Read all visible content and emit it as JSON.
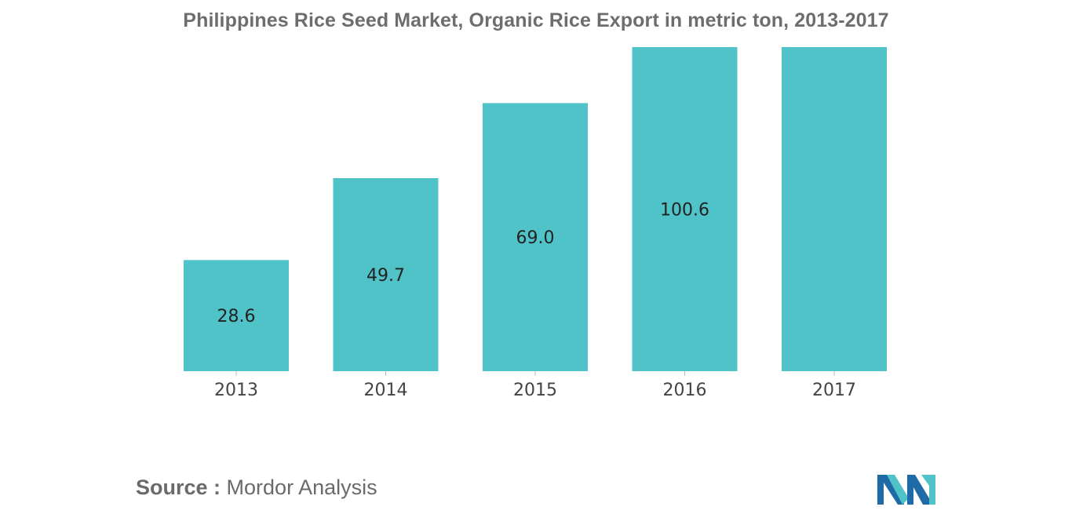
{
  "chart_data": {
    "type": "bar",
    "title": "Philippines Rice Seed Market, Organic Rice Export in metric ton, 2013-2017",
    "categories": [
      "2013",
      "2014",
      "2015",
      "2016",
      "2017"
    ],
    "values": [
      28.6,
      49.7,
      69.0,
      100.6,
      null
    ],
    "data_labels": [
      "28.6",
      "49.7",
      "69.0",
      "100.6",
      ""
    ],
    "xlabel": "",
    "ylabel": "",
    "bar_color": "#4fc3c8",
    "grid": false,
    "legend": "none"
  },
  "source": {
    "key": "Source :",
    "value": "Mordor Analysis"
  },
  "logo": {
    "icon": "mordor-intelligence-logo-icon",
    "colors": [
      "#1f6ba8",
      "#4fc3c8"
    ]
  }
}
